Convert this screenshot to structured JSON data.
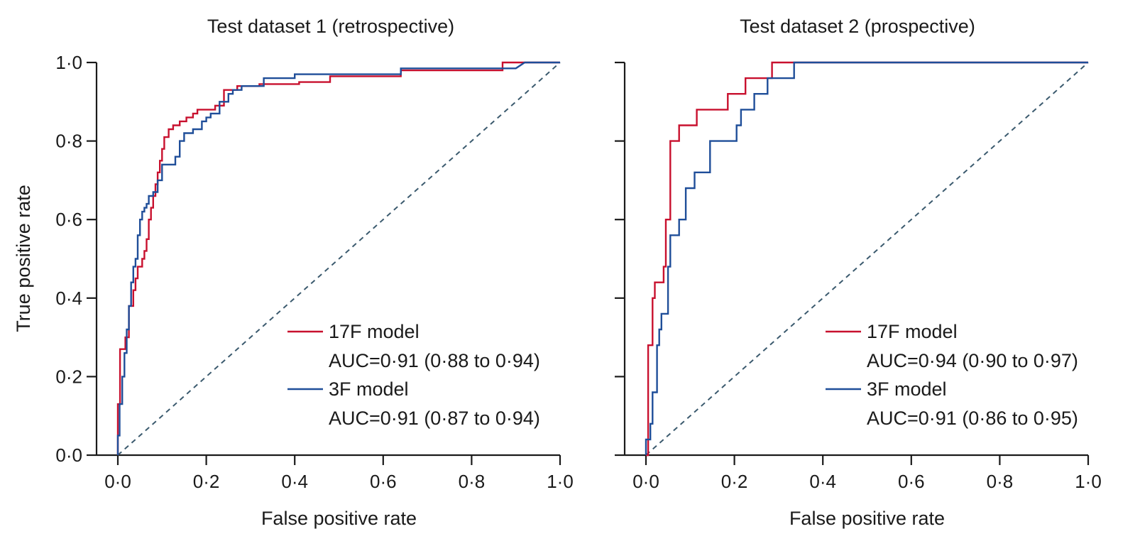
{
  "y_axis_title": "True positive rate",
  "chart_data": [
    {
      "type": "line",
      "title": "Test dataset 1 (retrospective)",
      "xlabel": "False positive rate",
      "ylabel": "True positive rate",
      "xlim": [
        0,
        1
      ],
      "ylim": [
        0,
        1
      ],
      "xticks": [
        "0·0",
        "0·2",
        "0·4",
        "0·6",
        "0·8",
        "1·0"
      ],
      "yticks": [
        "0·0",
        "0·2",
        "0·4",
        "0·6",
        "0·8",
        "1·0"
      ],
      "grid": false,
      "legend_position": "bottom-right",
      "series": [
        {
          "name": "17F model",
          "auc_label": "AUC=0·91 (0·88 to 0·94)",
          "color": "#c8102e",
          "points": [
            [
              0,
              0
            ],
            [
              0,
              0.13
            ],
            [
              0.005,
              0.13
            ],
            [
              0.005,
              0.27
            ],
            [
              0.017,
              0.27
            ],
            [
              0.017,
              0.3
            ],
            [
              0.025,
              0.3
            ],
            [
              0.025,
              0.38
            ],
            [
              0.035,
              0.38
            ],
            [
              0.035,
              0.42
            ],
            [
              0.04,
              0.42
            ],
            [
              0.04,
              0.45
            ],
            [
              0.045,
              0.45
            ],
            [
              0.045,
              0.48
            ],
            [
              0.055,
              0.48
            ],
            [
              0.055,
              0.5
            ],
            [
              0.06,
              0.5
            ],
            [
              0.06,
              0.52
            ],
            [
              0.065,
              0.52
            ],
            [
              0.065,
              0.55
            ],
            [
              0.07,
              0.55
            ],
            [
              0.07,
              0.6
            ],
            [
              0.075,
              0.6
            ],
            [
              0.075,
              0.63
            ],
            [
              0.08,
              0.63
            ],
            [
              0.08,
              0.66
            ],
            [
              0.085,
              0.66
            ],
            [
              0.085,
              0.69
            ],
            [
              0.09,
              0.69
            ],
            [
              0.09,
              0.72
            ],
            [
              0.095,
              0.72
            ],
            [
              0.095,
              0.75
            ],
            [
              0.1,
              0.75
            ],
            [
              0.1,
              0.78
            ],
            [
              0.105,
              0.78
            ],
            [
              0.105,
              0.81
            ],
            [
              0.115,
              0.81
            ],
            [
              0.115,
              0.83
            ],
            [
              0.125,
              0.83
            ],
            [
              0.125,
              0.84
            ],
            [
              0.14,
              0.84
            ],
            [
              0.14,
              0.85
            ],
            [
              0.155,
              0.85
            ],
            [
              0.155,
              0.86
            ],
            [
              0.17,
              0.86
            ],
            [
              0.17,
              0.87
            ],
            [
              0.18,
              0.87
            ],
            [
              0.18,
              0.88
            ],
            [
              0.22,
              0.88
            ],
            [
              0.22,
              0.89
            ],
            [
              0.24,
              0.89
            ],
            [
              0.24,
              0.93
            ],
            [
              0.27,
              0.93
            ],
            [
              0.27,
              0.94
            ],
            [
              0.32,
              0.94
            ],
            [
              0.32,
              0.945
            ],
            [
              0.41,
              0.945
            ],
            [
              0.41,
              0.95
            ],
            [
              0.48,
              0.95
            ],
            [
              0.48,
              0.965
            ],
            [
              0.64,
              0.965
            ],
            [
              0.64,
              0.98
            ],
            [
              0.87,
              0.98
            ],
            [
              0.87,
              1
            ],
            [
              1,
              1
            ]
          ]
        },
        {
          "name": "3F model",
          "auc_label": "AUC=0·91 (0·87 to 0·94)",
          "color": "#1f4e99",
          "points": [
            [
              0,
              0
            ],
            [
              0,
              0.05
            ],
            [
              0.004,
              0.05
            ],
            [
              0.004,
              0.13
            ],
            [
              0.01,
              0.13
            ],
            [
              0.01,
              0.2
            ],
            [
              0.015,
              0.2
            ],
            [
              0.015,
              0.26
            ],
            [
              0.02,
              0.26
            ],
            [
              0.02,
              0.32
            ],
            [
              0.025,
              0.32
            ],
            [
              0.025,
              0.38
            ],
            [
              0.03,
              0.38
            ],
            [
              0.03,
              0.44
            ],
            [
              0.035,
              0.44
            ],
            [
              0.035,
              0.48
            ],
            [
              0.04,
              0.48
            ],
            [
              0.04,
              0.5
            ],
            [
              0.045,
              0.5
            ],
            [
              0.045,
              0.56
            ],
            [
              0.05,
              0.56
            ],
            [
              0.05,
              0.6
            ],
            [
              0.055,
              0.6
            ],
            [
              0.055,
              0.62
            ],
            [
              0.06,
              0.62
            ],
            [
              0.06,
              0.63
            ],
            [
              0.065,
              0.63
            ],
            [
              0.065,
              0.64
            ],
            [
              0.07,
              0.64
            ],
            [
              0.07,
              0.66
            ],
            [
              0.08,
              0.66
            ],
            [
              0.08,
              0.67
            ],
            [
              0.09,
              0.67
            ],
            [
              0.09,
              0.7
            ],
            [
              0.1,
              0.7
            ],
            [
              0.1,
              0.74
            ],
            [
              0.13,
              0.74
            ],
            [
              0.13,
              0.76
            ],
            [
              0.14,
              0.76
            ],
            [
              0.14,
              0.8
            ],
            [
              0.15,
              0.8
            ],
            [
              0.15,
              0.82
            ],
            [
              0.17,
              0.82
            ],
            [
              0.17,
              0.83
            ],
            [
              0.19,
              0.83
            ],
            [
              0.19,
              0.85
            ],
            [
              0.2,
              0.85
            ],
            [
              0.2,
              0.86
            ],
            [
              0.21,
              0.86
            ],
            [
              0.21,
              0.87
            ],
            [
              0.23,
              0.87
            ],
            [
              0.23,
              0.9
            ],
            [
              0.25,
              0.9
            ],
            [
              0.25,
              0.92
            ],
            [
              0.26,
              0.92
            ],
            [
              0.26,
              0.93
            ],
            [
              0.28,
              0.93
            ],
            [
              0.28,
              0.94
            ],
            [
              0.33,
              0.94
            ],
            [
              0.33,
              0.96
            ],
            [
              0.4,
              0.96
            ],
            [
              0.4,
              0.97
            ],
            [
              0.64,
              0.97
            ],
            [
              0.64,
              0.985
            ],
            [
              0.9,
              0.985
            ],
            [
              0.92,
              1
            ],
            [
              1,
              1
            ]
          ]
        },
        {
          "name": "",
          "color": "#3b5a6e",
          "style": "dashed",
          "points": [
            [
              0,
              0
            ],
            [
              1,
              1
            ]
          ]
        }
      ]
    },
    {
      "type": "line",
      "title": "Test dataset 2 (prospective)",
      "xlabel": "False positive rate",
      "ylabel": "",
      "xlim": [
        0,
        1
      ],
      "ylim": [
        0,
        1
      ],
      "xticks": [
        "0·0",
        "0·2",
        "0·4",
        "0·6",
        "0·8",
        "1·0"
      ],
      "yticks": [
        "",
        "",
        "",
        "",
        "",
        ""
      ],
      "grid": false,
      "legend_position": "bottom-right",
      "series": [
        {
          "name": "17F model",
          "auc_label": "AUC=0·94 (0·90 to 0·97)",
          "color": "#c8102e",
          "points": [
            [
              0,
              0
            ],
            [
              0.005,
              0
            ],
            [
              0.005,
              0.28
            ],
            [
              0.015,
              0.28
            ],
            [
              0.015,
              0.4
            ],
            [
              0.02,
              0.4
            ],
            [
              0.02,
              0.44
            ],
            [
              0.04,
              0.44
            ],
            [
              0.04,
              0.48
            ],
            [
              0.045,
              0.48
            ],
            [
              0.045,
              0.6
            ],
            [
              0.055,
              0.6
            ],
            [
              0.055,
              0.8
            ],
            [
              0.075,
              0.8
            ],
            [
              0.075,
              0.84
            ],
            [
              0.115,
              0.84
            ],
            [
              0.115,
              0.88
            ],
            [
              0.185,
              0.88
            ],
            [
              0.185,
              0.92
            ],
            [
              0.225,
              0.92
            ],
            [
              0.225,
              0.96
            ],
            [
              0.285,
              0.96
            ],
            [
              0.285,
              1
            ],
            [
              1,
              1
            ]
          ]
        },
        {
          "name": "3F model",
          "auc_label": "AUC=0·91 (0·86 to 0·95)",
          "color": "#1f4e99",
          "points": [
            [
              0,
              0
            ],
            [
              0,
              0.04
            ],
            [
              0.01,
              0.04
            ],
            [
              0.01,
              0.08
            ],
            [
              0.015,
              0.08
            ],
            [
              0.015,
              0.16
            ],
            [
              0.025,
              0.16
            ],
            [
              0.025,
              0.28
            ],
            [
              0.03,
              0.28
            ],
            [
              0.03,
              0.32
            ],
            [
              0.035,
              0.32
            ],
            [
              0.035,
              0.36
            ],
            [
              0.05,
              0.36
            ],
            [
              0.05,
              0.48
            ],
            [
              0.055,
              0.48
            ],
            [
              0.055,
              0.56
            ],
            [
              0.075,
              0.56
            ],
            [
              0.075,
              0.6
            ],
            [
              0.09,
              0.6
            ],
            [
              0.09,
              0.68
            ],
            [
              0.11,
              0.68
            ],
            [
              0.11,
              0.72
            ],
            [
              0.145,
              0.72
            ],
            [
              0.145,
              0.8
            ],
            [
              0.205,
              0.8
            ],
            [
              0.205,
              0.84
            ],
            [
              0.215,
              0.84
            ],
            [
              0.215,
              0.88
            ],
            [
              0.245,
              0.88
            ],
            [
              0.245,
              0.92
            ],
            [
              0.275,
              0.92
            ],
            [
              0.275,
              0.96
            ],
            [
              0.335,
              0.96
            ],
            [
              0.335,
              1
            ],
            [
              1,
              1
            ]
          ]
        },
        {
          "name": "",
          "color": "#3b5a6e",
          "style": "dashed",
          "points": [
            [
              0,
              0
            ],
            [
              1,
              1
            ]
          ]
        }
      ]
    }
  ]
}
